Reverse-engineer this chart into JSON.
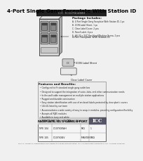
{
  "title": "4-Port Single Gang Faceplate With Station ID",
  "bg_color": "#f0f0f0",
  "title_color": "#000000",
  "title_fontsize": 5.2,
  "package_title": "Package Includes:",
  "package_items": [
    "A. 4-Port Single Gang Faceplate With Station ID, 1 pc",
    "B. ICON Label Sheet, 1 pc",
    "C. Clear Label Cover, 2 pcs",
    "D. Panel Label, 4 pcs",
    "E. #6-32 x 3/4\" Pan Head Machine Screw, 2 pcs"
  ],
  "callout_faceplate": "4-Port Faceplate With Station ID",
  "callout_icon": "ICON Label Sheet",
  "callout_clear": "Clear Label Cover",
  "features_title": "Features and Benefits:",
  "features": [
    "Configured to fit standard single gang outlet box",
    "Designed to support the integration of voice, data, and other communication needs",
    "In-the-wall cable management on multiple station applications",
    "Rugged and durable construction",
    "Easy station identification with use of enclosed labels protected by clear plastic covers",
    "UL/cUL listed by our team",
    "Accommodates a wide variety of easy to snap-in modules, providing configuration flexibility",
    "Accepts all RJ45 modules",
    "Available in ivory and white",
    "ANSI/TIA-568.0-D and A, TBB compliant"
  ],
  "bottom_bar_text": "FACEPLATE, ID, 1-GANG, 4-PORT",
  "table_rows": [
    [
      "TYPE 104",
      "IC107S04WH",
      "PKG",
      "1"
    ],
    [
      "TYPE 105",
      "IC107S04IV",
      "MASTER PKG",
      "1"
    ]
  ],
  "logo_text": "ICC",
  "footer_text": "For U.S. market all specifications are subject to change without notice. ICC is a registered trademark of ICC. All rights reserved.",
  "dark_bar_color": "#222222",
  "light_gray": "#dddddd",
  "border_color": "#555555",
  "faceplate_face": "#d4d4d4",
  "faceplate_side": "#aaaaaa",
  "faceplate_top": "#e8e8e8",
  "port_fill": "#b8b8b8",
  "port_inner": "#888888"
}
